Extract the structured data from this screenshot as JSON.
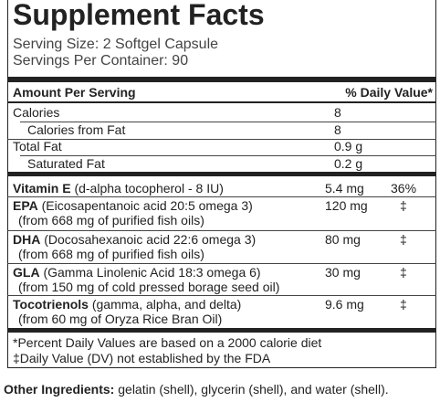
{
  "header": {
    "title": "Supplement Facts",
    "serving_size": "Serving Size: 2 Softgel Capsule",
    "servings_per_container": "Servings Per Container: 90"
  },
  "table": {
    "column_headers": [
      "Amount Per Serving",
      "% Daily Value*"
    ],
    "basic_rows": [
      [
        "Calories",
        "8"
      ],
      [
        "Calories from Fat",
        "8"
      ],
      [
        "Total Fat",
        "0.9 g"
      ],
      [
        "Saturated Fat",
        "0.2 g"
      ]
    ],
    "nutrients": [
      {
        "name": "Vitamin E",
        "desc": "(d-alpha tocopherol - 8 IU)",
        "desc2": null,
        "amount": "5.4 mg",
        "dv": "36%"
      },
      {
        "name": "EPA",
        "desc": "(Eicosapentanoic acid 20:5 omega 3)",
        "desc2": "(from 668 mg of purified fish oils)",
        "amount": "120 mg",
        "dv": "‡"
      },
      {
        "name": "DHA",
        "desc": "(Docosahexanoic acid 22:6 omega 3)",
        "desc2": "(from 668 mg of purified fish oils)",
        "amount": "80 mg",
        "dv": "‡"
      },
      {
        "name": "GLA",
        "desc": "(Gamma Linolenic Acid 18:3 omega 6)",
        "desc2": "(from 150 mg of cold pressed borage seed oil)",
        "amount": "30 mg",
        "dv": "‡"
      },
      {
        "name": "Tocotrienols",
        "desc": "(gamma, alpha, and delta)",
        "desc2": "(from 60 mg of Oryza Rice Bran Oil)",
        "amount": "9.6 mg",
        "dv": "‡"
      }
    ]
  },
  "footnotes": [
    "*Percent Daily Values are based on a 2000 calorie diet",
    "‡Daily Value (DV) not established by the FDA"
  ],
  "other_ingredients": {
    "label": "Other Ingredients:",
    "text": "gelatin (shell), glycerin (shell), and water (shell)."
  }
}
